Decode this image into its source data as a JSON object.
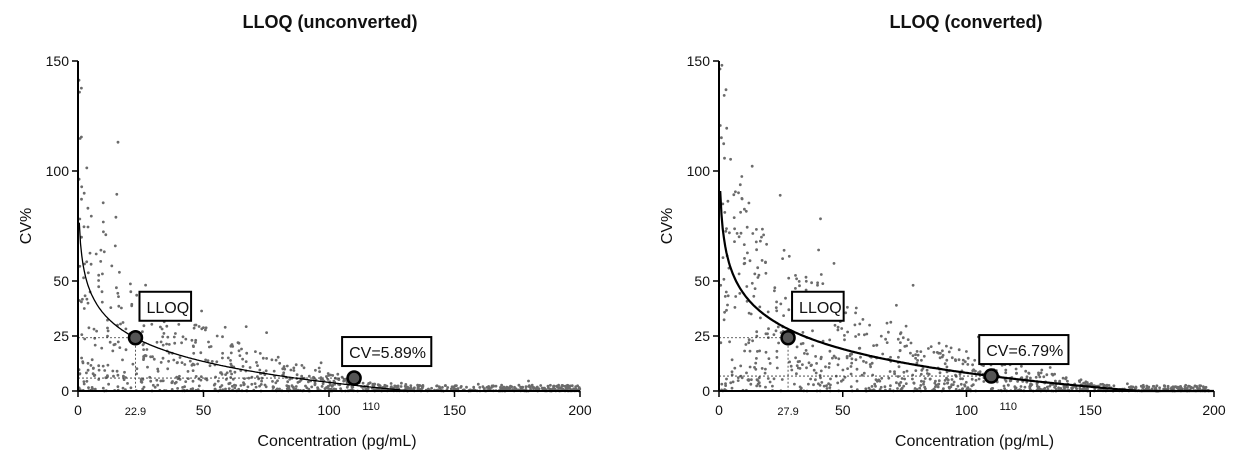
{
  "chart_data": [
    {
      "type": "scatter",
      "title": "LLOQ (unconverted)",
      "xlabel": "Concentration (pg/mL)",
      "ylabel": "CV%",
      "xlim": [
        0,
        200
      ],
      "ylim": [
        0,
        150
      ],
      "xticks": [
        "0",
        "50",
        "100",
        "150",
        "200"
      ],
      "yticks": [
        "0",
        "25",
        "50",
        "100",
        "150"
      ],
      "grid": false,
      "fit": {
        "type": "log",
        "a": 67.0,
        "b": -13.7,
        "min_x": 0.5
      },
      "lloq_point": {
        "x": 22.9,
        "y": 24.2,
        "label": "LLOQ",
        "x_tick": "22.9"
      },
      "cv_point": {
        "x": 110,
        "y": 5.89,
        "label": "CV=5.89%",
        "x_tick": "110"
      },
      "scatter_seed": 11,
      "scatter_count": 900,
      "colors": {
        "points": "#6b6b6b",
        "fit": "#000000",
        "marker": "#555555",
        "marker_edge": "#000000"
      }
    },
    {
      "type": "scatter",
      "title": "LLOQ (converted)",
      "xlabel": "Concentration (pg/mL)",
      "ylabel": "CV%",
      "xlim": [
        0,
        200
      ],
      "ylim": [
        0,
        150
      ],
      "xticks": [
        "0",
        "50",
        "100",
        "150",
        "200"
      ],
      "yticks": [
        "0",
        "25",
        "50",
        "100",
        "150"
      ],
      "grid": false,
      "fit": {
        "type": "log",
        "a": 80.1,
        "b": -15.6,
        "min_x": 0.5
      },
      "lloq_point": {
        "x": 27.9,
        "y": 24.2,
        "label": "LLOQ",
        "x_tick": "27.9"
      },
      "cv_point": {
        "x": 110,
        "y": 6.79,
        "label": "CV=6.79%",
        "x_tick": "110"
      },
      "scatter_seed": 29,
      "scatter_count": 900,
      "colors": {
        "points": "#6b6b6b",
        "fit": "#000000",
        "marker": "#555555",
        "marker_edge": "#000000"
      }
    }
  ]
}
